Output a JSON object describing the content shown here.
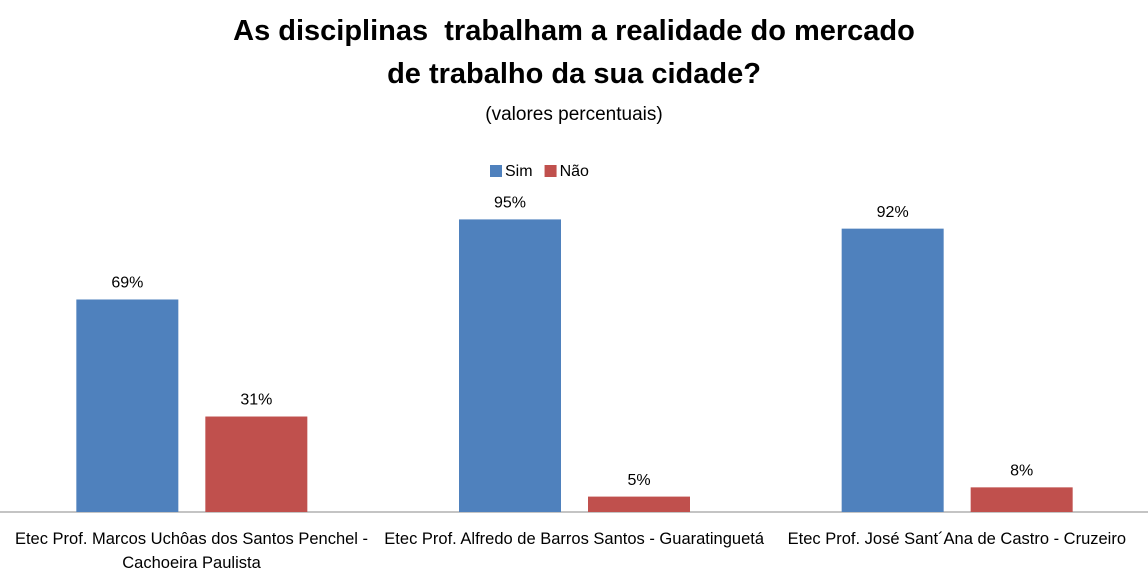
{
  "chart_data": {
    "type": "bar",
    "title": "As disciplinas  trabalham a realidade do mercado de trabalho da sua cidade?",
    "subtitle": "(valores percentuais)",
    "categories": [
      "Etec Prof. Marcos Uchôas dos Santos Penchel - Cachoeira Paulista",
      "Etec Prof. Alfredo de Barros Santos - Guaratinguetá",
      "Etec Prof. José Sant´Ana de Castro - Cruzeiro"
    ],
    "series": [
      {
        "name": "Sim",
        "color": "#4f81bd",
        "values": [
          69,
          95,
          92
        ],
        "value_labels": [
          "69%",
          "95%",
          "92%"
        ]
      },
      {
        "name": "Não",
        "color": "#c0504d",
        "values": [
          31,
          5,
          8
        ],
        "value_labels": [
          "31%",
          "5%",
          "8%"
        ]
      }
    ],
    "legend": "top"
  }
}
